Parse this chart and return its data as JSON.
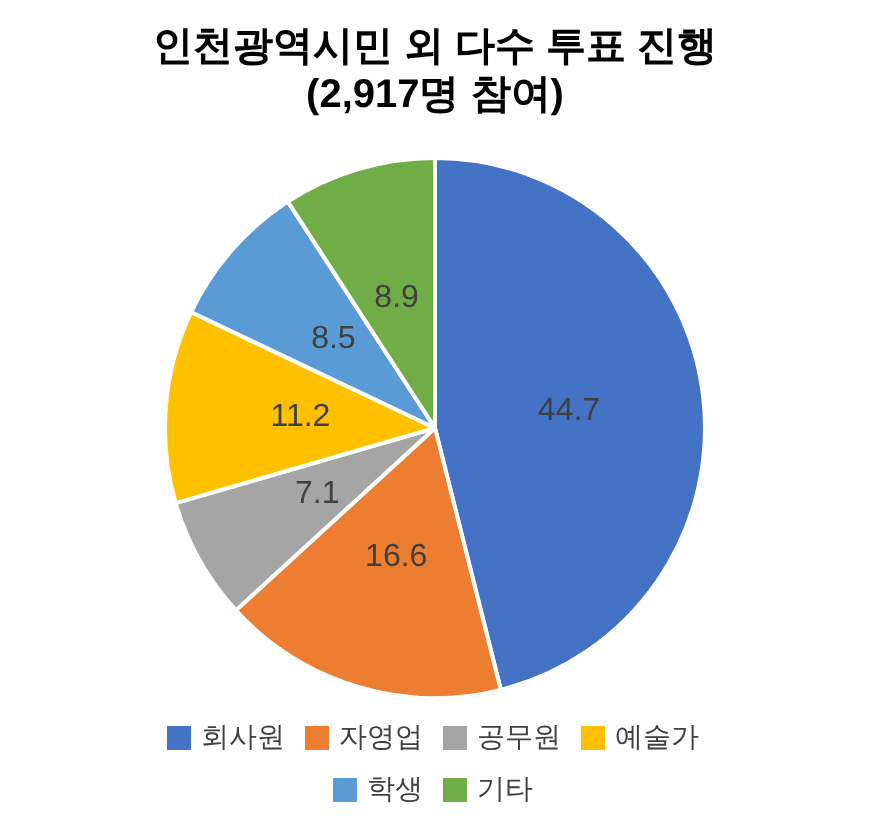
{
  "chart_data": {
    "type": "pie",
    "title": "인천광역시민 외 다수 투표 진행\n(2,917명 참여)",
    "categories": [
      "회사원",
      "자영업",
      "공무원",
      "예술가",
      "학생",
      "기타"
    ],
    "values": [
      44.7,
      16.6,
      7.1,
      11.2,
      8.5,
      8.9
    ],
    "colors": [
      "#4472c4",
      "#ed7d31",
      "#a5a5a5",
      "#ffc000",
      "#5b9bd5",
      "#70ad47"
    ],
    "data_labels": true,
    "legend": "bottom"
  }
}
